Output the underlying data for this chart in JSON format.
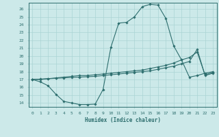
{
  "xlabel": "Humidex (Indice chaleur)",
  "background_color": "#cce9e9",
  "grid_color": "#aad4d4",
  "line_color": "#2d6e6e",
  "x_ticks": [
    0,
    1,
    2,
    3,
    4,
    5,
    6,
    7,
    8,
    9,
    10,
    11,
    12,
    13,
    14,
    15,
    16,
    17,
    18,
    19,
    20,
    21,
    22,
    23
  ],
  "y_ticks": [
    14,
    15,
    16,
    17,
    18,
    19,
    20,
    21,
    22,
    23,
    24,
    25,
    26
  ],
  "xlim": [
    -0.5,
    23.5
  ],
  "ylim": [
    13.5,
    26.8
  ],
  "line1_x": [
    0,
    1,
    2,
    3,
    4,
    5,
    6,
    7,
    8,
    9,
    10,
    11,
    12,
    13,
    14,
    15,
    16,
    17,
    18,
    19,
    20,
    21,
    22,
    23
  ],
  "line1_y": [
    17.0,
    16.7,
    16.2,
    15.1,
    14.2,
    14.0,
    13.8,
    13.8,
    13.85,
    15.7,
    21.1,
    24.2,
    24.3,
    25.0,
    26.3,
    26.6,
    26.5,
    24.8,
    21.3,
    19.5,
    17.3,
    17.5,
    17.8,
    18.0
  ],
  "line2_x": [
    0,
    1,
    2,
    3,
    4,
    5,
    6,
    7,
    8,
    9,
    10,
    11,
    12,
    13,
    14,
    15,
    16,
    17,
    18,
    19,
    20,
    21,
    22,
    23
  ],
  "line2_y": [
    17.0,
    17.05,
    17.1,
    17.15,
    17.2,
    17.25,
    17.3,
    17.35,
    17.4,
    17.5,
    17.6,
    17.7,
    17.8,
    17.9,
    18.0,
    18.1,
    18.3,
    18.5,
    18.7,
    19.0,
    19.3,
    20.85,
    17.5,
    17.8
  ],
  "line3_x": [
    0,
    1,
    2,
    3,
    4,
    5,
    6,
    7,
    8,
    9,
    10,
    11,
    12,
    13,
    14,
    15,
    16,
    17,
    18,
    19,
    20,
    21,
    22,
    23
  ],
  "line3_y": [
    17.0,
    17.0,
    17.1,
    17.2,
    17.3,
    17.4,
    17.5,
    17.5,
    17.6,
    17.7,
    17.8,
    17.9,
    18.0,
    18.1,
    18.2,
    18.4,
    18.6,
    18.8,
    19.1,
    19.5,
    19.8,
    20.5,
    17.6,
    17.9
  ]
}
